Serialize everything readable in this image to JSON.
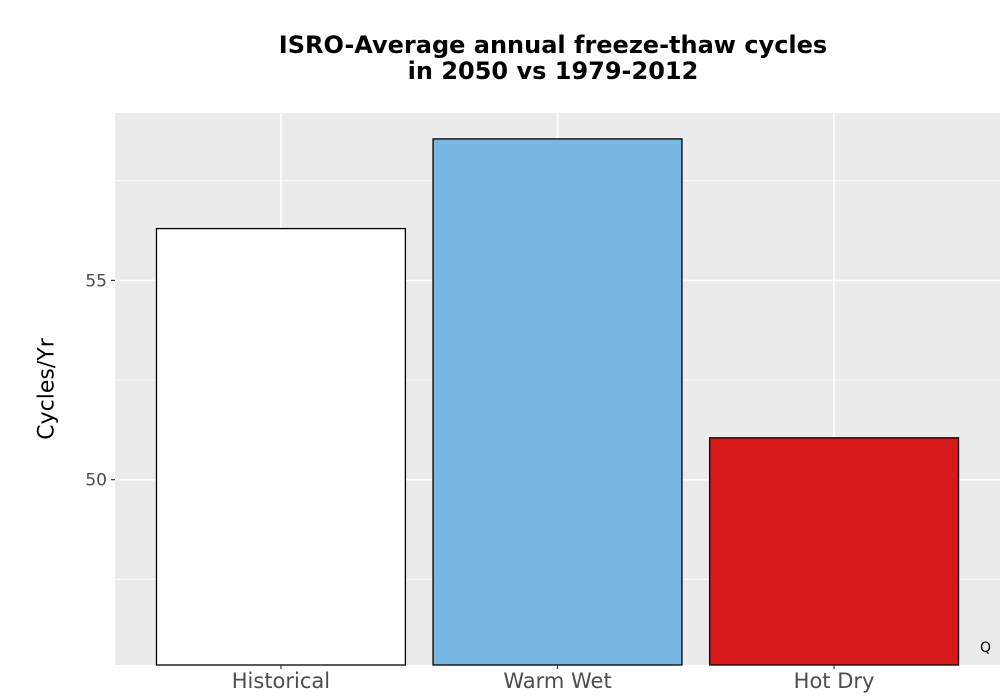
{
  "chart_data": {
    "type": "bar",
    "title_lines": [
      "ISRO-Average annual freeze-thaw cycles",
      "in 2050 vs 1979-2012"
    ],
    "xlabel": "",
    "ylabel": "Cycles/Yr",
    "categories": [
      "Historical",
      "Warm Wet",
      "Hot Dry"
    ],
    "values": [
      56.3,
      58.55,
      51.05
    ],
    "colors": [
      "#ffffff",
      "#78b7e1",
      "#d7191c"
    ],
    "ylim": [
      45.35,
      59.2
    ],
    "y_ticks": [
      50,
      55
    ],
    "y_minor_ticks": [
      47.5,
      52.5,
      57.5
    ],
    "grid": true,
    "panel_color": "#ebebeb",
    "bar_outline": "#000000"
  },
  "corner_mark": "Q"
}
